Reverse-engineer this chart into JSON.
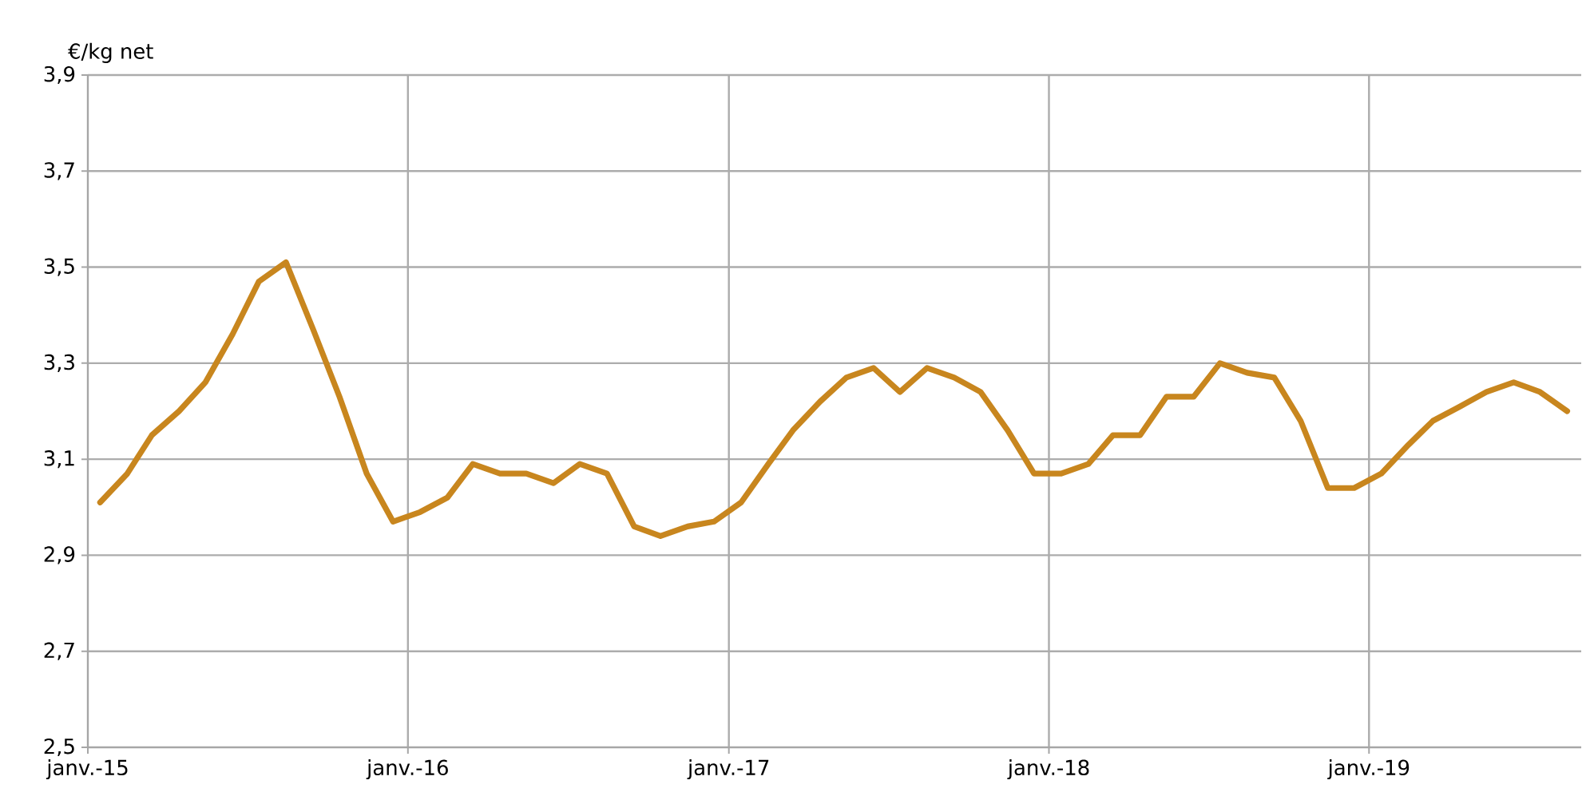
{
  "chart_data": {
    "type": "line",
    "ylabel": "€/kg net",
    "x": [
      "2015-01-15",
      "2015-02-15",
      "2015-03-15",
      "2015-04-15",
      "2015-05-15",
      "2015-06-15",
      "2015-07-15",
      "2015-08-15",
      "2015-09-15",
      "2015-10-15",
      "2015-11-15",
      "2015-12-15",
      "2016-01-15",
      "2016-02-15",
      "2016-03-15",
      "2016-04-15",
      "2016-05-15",
      "2016-06-15",
      "2016-07-15",
      "2016-08-15",
      "2016-09-15",
      "2016-10-15",
      "2016-11-15",
      "2016-12-15",
      "2017-01-15",
      "2017-02-15",
      "2017-03-15",
      "2017-04-15",
      "2017-05-15",
      "2017-06-15",
      "2017-07-15",
      "2017-08-15",
      "2017-09-15",
      "2017-10-15",
      "2017-11-15",
      "2017-12-15",
      "2018-01-15",
      "2018-02-15",
      "2018-03-15",
      "2018-04-15",
      "2018-05-15",
      "2018-06-15",
      "2018-07-15",
      "2018-08-15",
      "2018-09-15",
      "2018-10-15",
      "2018-11-15",
      "2018-12-15",
      "2019-01-15",
      "2019-02-15",
      "2019-03-15",
      "2019-04-15",
      "2019-05-15",
      "2019-06-15",
      "2019-07-15",
      "2019-08-15"
    ],
    "series": [
      {
        "color": "#c8861e",
        "values": [
          3.01,
          3.07,
          3.15,
          3.2,
          3.26,
          3.36,
          3.47,
          3.51,
          3.37,
          3.23,
          3.07,
          2.97,
          2.99,
          3.02,
          3.09,
          3.07,
          3.07,
          3.05,
          3.09,
          3.07,
          2.96,
          2.94,
          2.96,
          2.97,
          3.01,
          3.09,
          3.16,
          3.22,
          3.27,
          3.29,
          3.24,
          3.29,
          3.27,
          3.24,
          3.16,
          3.07,
          3.07,
          3.09,
          3.15,
          3.15,
          3.23,
          3.23,
          3.3,
          3.28,
          3.27,
          3.18,
          3.04,
          3.04,
          3.07,
          3.13,
          3.18,
          3.21,
          3.24,
          3.26,
          3.24,
          3.2
        ]
      }
    ],
    "xlim": [
      "2015-01-01",
      "2019-08-31"
    ],
    "xticks": [
      {
        "value": "2015-01-01",
        "label": "janv.-15"
      },
      {
        "value": "2016-01-01",
        "label": "janv.-16"
      },
      {
        "value": "2017-01-01",
        "label": "janv.-17"
      },
      {
        "value": "2018-01-01",
        "label": "janv.-18"
      },
      {
        "value": "2019-01-01",
        "label": "janv.-19"
      }
    ],
    "ylim": [
      2.5,
      3.9
    ],
    "yticks": [
      {
        "value": 2.5,
        "label": "2,5"
      },
      {
        "value": 2.7,
        "label": "2,7"
      },
      {
        "value": 2.9,
        "label": "2,9"
      },
      {
        "value": 3.1,
        "label": "3,1"
      },
      {
        "value": 3.3,
        "label": "3,3"
      },
      {
        "value": 3.5,
        "label": "3,5"
      },
      {
        "value": 3.7,
        "label": "3,7"
      },
      {
        "value": 3.9,
        "label": "3,9"
      }
    ],
    "grid": true,
    "marker": "none",
    "line_style": "solid"
  }
}
